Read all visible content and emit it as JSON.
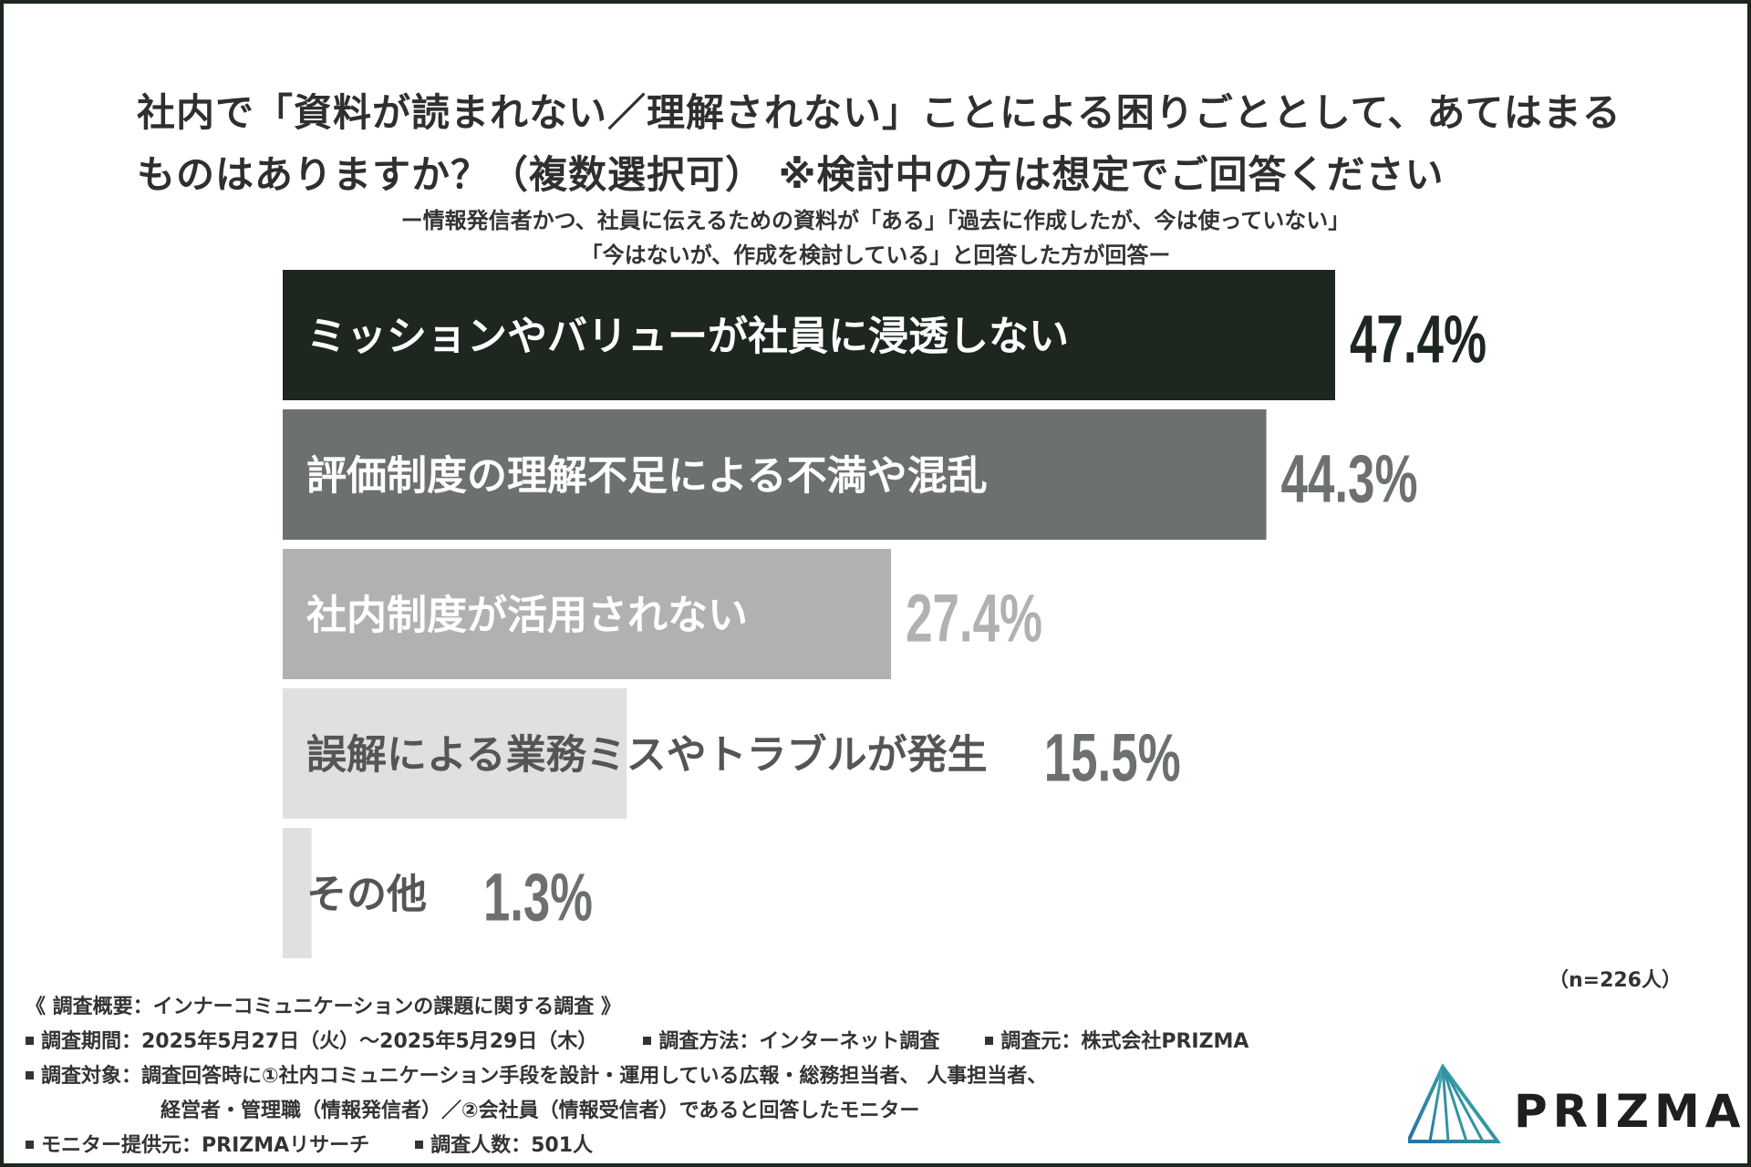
{
  "title_line1": "社内で「資料が読まれない／理解されない」ことによる困りごととして、あてはまる",
  "title_line2": "ものはありますか？（複数選択可） ※検討中の方は想定でご回答ください",
  "subtitle_line1": "ー情報発信者かつ、社員に伝えるための資料が「ある」「過去に作成したが、今は使っていない」",
  "subtitle_line2": "「今はないが、作成を検討している」と回答した方が回答ー",
  "chart_data": {
    "type": "bar",
    "orientation": "horizontal",
    "categories": [
      "ミッションやバリューが社員に浸透しない",
      "評価制度の理解不足による不満や混乱",
      "社内制度が活用されない",
      "誤解による業務ミスやトラブルが発生",
      "その他"
    ],
    "values": [
      47.4,
      44.3,
      27.4,
      15.5,
      1.3
    ],
    "value_labels": [
      "47.4%",
      "44.3%",
      "27.4%",
      "15.5%",
      "1.3%"
    ],
    "bar_colors": [
      "#1e2620",
      "#6c716d",
      "#b1b1b1",
      "#e0e0e0",
      "#e0e0e0"
    ],
    "label_colors": [
      "#ffffff",
      "#ffffff",
      "#ffffff",
      "#555555",
      "#555555"
    ],
    "value_colors": [
      "#1e2620",
      "#6c716d",
      "#b1b1b1",
      "#6c716d",
      "#6c716d"
    ],
    "xlim": [
      0,
      50
    ],
    "grid": false
  },
  "sample_note": "（n=226人）",
  "footer": {
    "survey_title": "《 調査概要：インナーコミュニケーションの課題に関する調査 》",
    "period": "調査期間：2025年5月27日（火）〜2025年5月29日（木）",
    "method": "調査方法：インターネット調査",
    "source": "調査元：株式会社PRIZMA",
    "target_line1": "調査対象：調査回答時に①社内コミュニケーション手段を設計・運用している広報・総務担当者、 人事担当者、",
    "target_line2": "経営者・管理職（情報発信者）／②会社員（情報受信者）であると回答したモニター",
    "provider": "モニター提供元：PRIZMAリサーチ",
    "respondents": "調査人数：501人"
  },
  "logo_text": "PRIZMA",
  "colors": {
    "frame": "#1e2620",
    "text": "#2f2f2f"
  }
}
